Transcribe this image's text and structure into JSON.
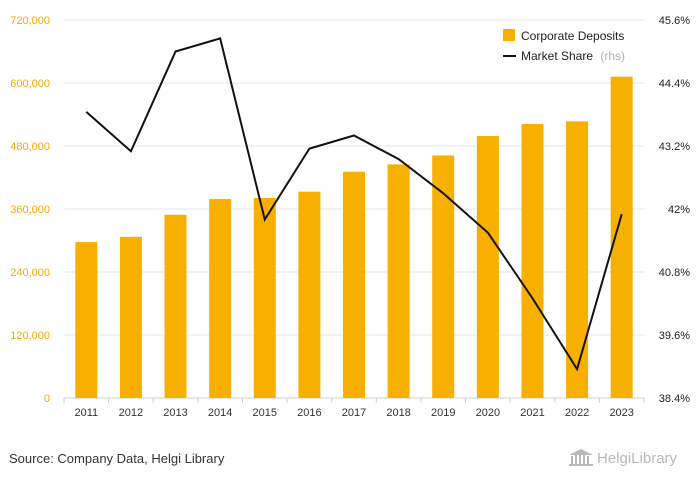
{
  "colors": {
    "bar": "#f8b000",
    "line": "#111111",
    "left_axis_text": "#f5a800",
    "right_axis_text": "#222222",
    "grid": "#e6e6e6",
    "logo": "#b9b9b9"
  },
  "chart_data": {
    "type": "bar",
    "title": "",
    "xlabel": "",
    "categories": [
      "2011",
      "2012",
      "2013",
      "2014",
      "2015",
      "2016",
      "2017",
      "2018",
      "2019",
      "2020",
      "2021",
      "2022",
      "2023"
    ],
    "series": [
      {
        "name": "Corporate Deposits",
        "type": "bar",
        "axis": "left",
        "values": [
          297000,
          307000,
          349000,
          379000,
          381000,
          393000,
          431000,
          445000,
          462000,
          499000,
          522000,
          527000,
          612000
        ]
      },
      {
        "name": "Market Share",
        "type": "line",
        "axis": "right",
        "values": [
          43.85,
          43.1,
          45.0,
          45.25,
          41.8,
          43.15,
          43.4,
          42.95,
          42.3,
          41.55,
          40.3,
          38.95,
          41.9
        ]
      }
    ],
    "y_left": {
      "min": 0,
      "max": 720000,
      "ticks": [
        0,
        120000,
        240000,
        360000,
        480000,
        600000,
        720000
      ],
      "tick_labels": [
        "0",
        "120,000",
        "240,000",
        "360,000",
        "480,000",
        "600,000",
        "720,000"
      ]
    },
    "y_right": {
      "min": 38.4,
      "max": 45.6,
      "ticks": [
        38.4,
        39.6,
        40.8,
        42.0,
        43.2,
        44.4,
        45.6
      ],
      "tick_labels": [
        "38.4%",
        "39.6%",
        "40.8%",
        "42%",
        "43.2%",
        "44.4%",
        "45.6%"
      ]
    },
    "legend": {
      "placement": "top-right",
      "entries": [
        {
          "label": "Corporate Deposits",
          "suffix": ""
        },
        {
          "label": "Market Share",
          "suffix": "(rhs)"
        }
      ]
    },
    "grid": true
  },
  "footer": {
    "source": "Source: Company Data, Helgi Library",
    "logo_text": "HelgiLibrary"
  }
}
